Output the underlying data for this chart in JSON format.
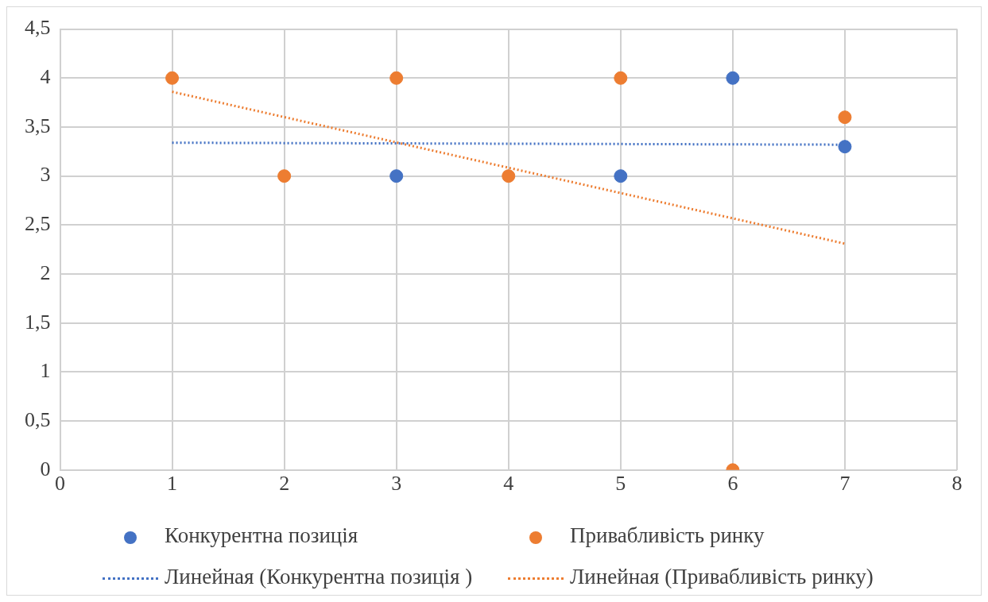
{
  "chart_data": {
    "type": "scatter",
    "x": [
      1,
      2,
      3,
      4,
      5,
      6,
      7
    ],
    "series": [
      {
        "name": "Конкурентна позиція",
        "color": "#4472c4",
        "values": [
          null,
          null,
          3,
          null,
          3,
          4,
          3.3
        ]
      },
      {
        "name": "Привабливість ринку",
        "color": "#ed7d31",
        "values": [
          4,
          3,
          4,
          3,
          4,
          0,
          3.6
        ]
      },
      {
        "name": "Линейная (Конкурентна позиція )",
        "type": "line",
        "marker": "none",
        "line_style": "dotted",
        "color": "#4472c4",
        "values": [
          3.34,
          null,
          null,
          null,
          null,
          null,
          3.32
        ]
      },
      {
        "name": "Линейная (Привабливість ринку)",
        "type": "line",
        "marker": "none",
        "line_style": "dotted",
        "color": "#ed7d31",
        "values": [
          3.86,
          null,
          null,
          null,
          null,
          null,
          2.31
        ]
      }
    ],
    "marker": "circle",
    "xlim": [
      0,
      8
    ],
    "xticks": [
      0,
      1,
      2,
      3,
      4,
      5,
      6,
      7,
      8
    ],
    "ylim": [
      0,
      4.5
    ],
    "yticks": [
      0,
      {
        "value": 0.5,
        "label": "0,5"
      },
      1,
      {
        "value": 1.5,
        "label": "1,5"
      },
      2,
      {
        "value": 2.5,
        "label": "2,5"
      },
      3,
      {
        "value": 3.5,
        "label": "3,5"
      },
      4,
      {
        "value": 4.5,
        "label": "4,5"
      }
    ],
    "grid": true,
    "legend": "bottom"
  }
}
